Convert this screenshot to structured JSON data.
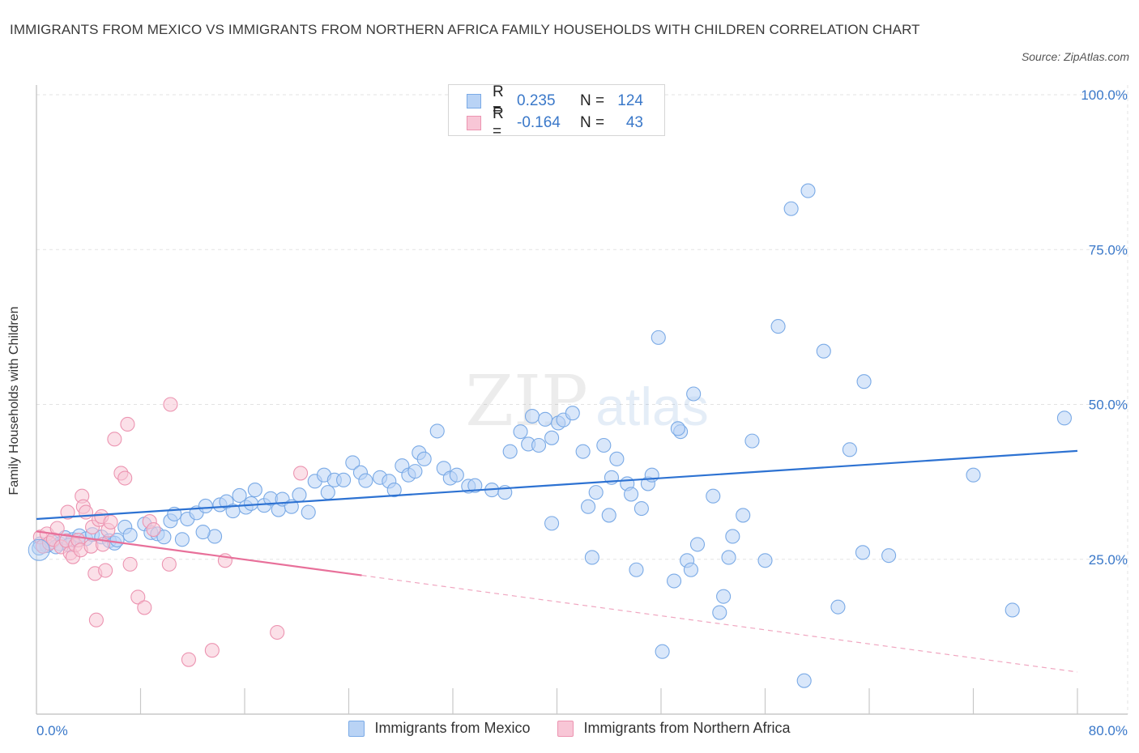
{
  "title": "IMMIGRANTS FROM MEXICO VS IMMIGRANTS FROM NORTHERN AFRICA FAMILY HOUSEHOLDS WITH CHILDREN CORRELATION CHART",
  "source": "Source: ZipAtlas.com",
  "watermark": {
    "zip": "ZIP",
    "atlas": "atlas"
  },
  "legend_stats": [
    {
      "r_label": "R =",
      "r_value": "0.235",
      "n_label": "N =",
      "n_value": "124",
      "color": "#b9d3f5",
      "border": "#7aaae6"
    },
    {
      "r_label": "R =",
      "r_value": "-0.164",
      "n_label": "N =",
      "n_value": "43",
      "color": "#f8c6d6",
      "border": "#ec94b1"
    }
  ],
  "chart_data": {
    "type": "scatter",
    "title": "IMMIGRANTS FROM MEXICO VS IMMIGRANTS FROM NORTHERN AFRICA FAMILY HOUSEHOLDS WITH CHILDREN CORRELATION CHART",
    "xlabel": "",
    "ylabel": "Family Households with Children",
    "xlim": [
      0,
      80
    ],
    "ylim": [
      0,
      100
    ],
    "x_tick_labels": [
      "0.0%",
      "80.0%"
    ],
    "y_tick_labels": [
      "100.0%",
      "75.0%",
      "50.0%",
      "25.0%"
    ],
    "y_ticks": [
      100,
      75,
      50,
      25
    ],
    "grid": true,
    "legend_position": "bottom",
    "series": [
      {
        "name": "Immigrants from Mexico",
        "color": "#7aaae6",
        "fill": "#b9d3f5",
        "trend": {
          "x": [
            0,
            80
          ],
          "y": [
            31.5,
            42.5
          ],
          "dash_from": null
        },
        "points": [
          [
            0.3,
            27.5
          ],
          [
            0.8,
            27.2
          ],
          [
            1.2,
            27.8
          ],
          [
            1.8,
            27.5
          ],
          [
            2.2,
            28.5
          ],
          [
            2.8,
            28.2
          ],
          [
            3.3,
            28.8
          ],
          [
            3.8,
            28.3
          ],
          [
            4.3,
            29.0
          ],
          [
            5.0,
            28.6
          ],
          [
            5.6,
            28.0
          ],
          [
            6.0,
            27.6
          ],
          [
            6.8,
            30.2
          ],
          [
            7.2,
            28.9
          ],
          [
            8.3,
            30.7
          ],
          [
            8.8,
            29.3
          ],
          [
            9.3,
            29.1
          ],
          [
            10.3,
            31.2
          ],
          [
            10.6,
            32.3
          ],
          [
            11.2,
            28.2
          ],
          [
            11.6,
            31.5
          ],
          [
            12.3,
            32.5
          ],
          [
            13.0,
            33.6
          ],
          [
            13.7,
            28.7
          ],
          [
            14.1,
            33.8
          ],
          [
            14.6,
            34.3
          ],
          [
            15.1,
            32.8
          ],
          [
            15.6,
            35.3
          ],
          [
            16.1,
            33.4
          ],
          [
            16.8,
            36.2
          ],
          [
            17.5,
            33.7
          ],
          [
            18.0,
            34.8
          ],
          [
            18.6,
            33.0
          ],
          [
            18.9,
            34.7
          ],
          [
            19.6,
            33.5
          ],
          [
            20.2,
            35.4
          ],
          [
            20.9,
            32.6
          ],
          [
            21.4,
            37.6
          ],
          [
            22.1,
            38.6
          ],
          [
            22.4,
            35.8
          ],
          [
            22.9,
            37.8
          ],
          [
            23.6,
            37.8
          ],
          [
            24.3,
            40.6
          ],
          [
            24.9,
            39.0
          ],
          [
            25.3,
            37.7
          ],
          [
            26.4,
            38.2
          ],
          [
            27.1,
            37.6
          ],
          [
            27.5,
            36.2
          ],
          [
            28.1,
            40.1
          ],
          [
            28.6,
            38.6
          ],
          [
            29.1,
            39.2
          ],
          [
            29.4,
            42.2
          ],
          [
            29.8,
            41.2
          ],
          [
            30.8,
            45.7
          ],
          [
            31.3,
            39.7
          ],
          [
            31.8,
            38.1
          ],
          [
            32.3,
            38.6
          ],
          [
            33.2,
            36.8
          ],
          [
            33.7,
            36.9
          ],
          [
            35.0,
            36.2
          ],
          [
            36.0,
            35.8
          ],
          [
            36.4,
            42.4
          ],
          [
            37.2,
            45.6
          ],
          [
            37.8,
            43.6
          ],
          [
            38.1,
            48.1
          ],
          [
            38.6,
            43.4
          ],
          [
            39.1,
            47.6
          ],
          [
            39.6,
            44.6
          ],
          [
            40.1,
            47.0
          ],
          [
            40.5,
            47.5
          ],
          [
            41.2,
            48.6
          ],
          [
            42.0,
            42.4
          ],
          [
            39.6,
            30.8
          ],
          [
            42.4,
            33.5
          ],
          [
            42.7,
            25.3
          ],
          [
            43.0,
            35.8
          ],
          [
            43.6,
            43.4
          ],
          [
            44.0,
            32.1
          ],
          [
            44.6,
            41.2
          ],
          [
            44.2,
            38.2
          ],
          [
            45.4,
            37.2
          ],
          [
            45.7,
            35.5
          ],
          [
            46.1,
            23.3
          ],
          [
            46.5,
            33.2
          ],
          [
            47.0,
            37.2
          ],
          [
            47.3,
            38.6
          ],
          [
            47.8,
            60.8
          ],
          [
            48.1,
            10.1
          ],
          [
            49.0,
            21.5
          ],
          [
            49.5,
            45.6
          ],
          [
            49.3,
            46.1
          ],
          [
            50.0,
            24.8
          ],
          [
            50.3,
            23.3
          ],
          [
            50.5,
            51.7
          ],
          [
            50.8,
            27.4
          ],
          [
            52.0,
            35.2
          ],
          [
            52.5,
            16.4
          ],
          [
            52.8,
            19.0
          ],
          [
            53.2,
            25.3
          ],
          [
            53.5,
            28.7
          ],
          [
            54.3,
            32.1
          ],
          [
            55.0,
            44.1
          ],
          [
            56.0,
            24.8
          ],
          [
            57.0,
            62.6
          ],
          [
            58.0,
            81.6
          ],
          [
            59.0,
            5.4
          ],
          [
            59.3,
            84.5
          ],
          [
            60.5,
            58.6
          ],
          [
            61.6,
            17.3
          ],
          [
            62.5,
            42.7
          ],
          [
            63.5,
            26.1
          ],
          [
            63.6,
            53.7
          ],
          [
            65.5,
            25.6
          ],
          [
            72.0,
            38.6
          ],
          [
            75.0,
            16.8
          ],
          [
            79.0,
            47.8
          ],
          [
            0.2,
            26.8
          ],
          [
            1.5,
            27.0
          ],
          [
            2.5,
            27.3
          ],
          [
            6.2,
            28.1
          ],
          [
            9.8,
            28.6
          ],
          [
            12.8,
            29.4
          ],
          [
            16.5,
            34.0
          ]
        ]
      },
      {
        "name": "Immigrants from Northern Africa",
        "color": "#ec94b1",
        "fill": "#f8c6d6",
        "trend": {
          "x": [
            0,
            80
          ],
          "y": [
            29.5,
            6.8
          ],
          "dash_from": 25.0
        },
        "points": [
          [
            0.3,
            28.6
          ],
          [
            0.5,
            27.1
          ],
          [
            0.8,
            29.1
          ],
          [
            1.0,
            27.6
          ],
          [
            1.3,
            28.2
          ],
          [
            1.6,
            30.0
          ],
          [
            1.9,
            27.0
          ],
          [
            2.3,
            28.0
          ],
          [
            2.4,
            32.6
          ],
          [
            2.6,
            26.0
          ],
          [
            2.8,
            25.4
          ],
          [
            3.0,
            27.3
          ],
          [
            3.2,
            28.1
          ],
          [
            3.4,
            26.5
          ],
          [
            3.5,
            35.2
          ],
          [
            3.6,
            33.5
          ],
          [
            3.8,
            32.6
          ],
          [
            4.2,
            27.1
          ],
          [
            4.3,
            30.2
          ],
          [
            4.5,
            22.7
          ],
          [
            4.6,
            15.2
          ],
          [
            4.8,
            31.4
          ],
          [
            5.0,
            31.9
          ],
          [
            5.1,
            27.4
          ],
          [
            5.3,
            23.2
          ],
          [
            5.5,
            29.7
          ],
          [
            5.7,
            31.0
          ],
          [
            6.0,
            44.4
          ],
          [
            6.5,
            38.9
          ],
          [
            6.8,
            38.1
          ],
          [
            7.0,
            46.8
          ],
          [
            7.2,
            24.2
          ],
          [
            7.8,
            18.9
          ],
          [
            8.3,
            17.2
          ],
          [
            8.7,
            31.1
          ],
          [
            9.0,
            29.8
          ],
          [
            10.2,
            24.2
          ],
          [
            10.3,
            50.0
          ],
          [
            11.7,
            8.8
          ],
          [
            13.5,
            10.3
          ],
          [
            14.5,
            24.8
          ],
          [
            18.5,
            13.2
          ],
          [
            20.3,
            38.9
          ]
        ]
      }
    ]
  },
  "bottom_legend": [
    "Immigrants from Mexico",
    "Immigrants from Northern Africa"
  ]
}
